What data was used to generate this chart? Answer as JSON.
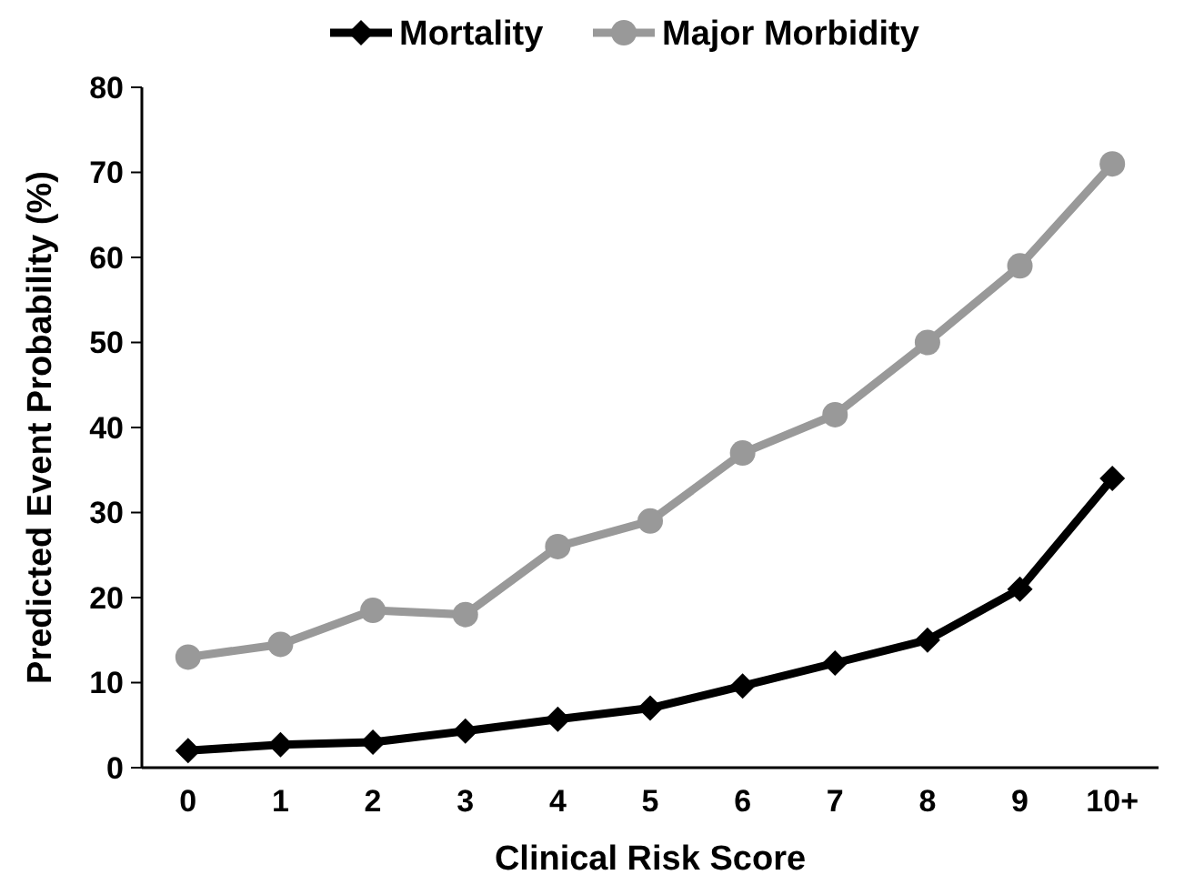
{
  "chart_data": {
    "type": "line",
    "xlabel": "Clinical Risk Score",
    "ylabel": "Predicted Event Probability  (%)",
    "categories": [
      "0",
      "1",
      "2",
      "3",
      "4",
      "5",
      "6",
      "7",
      "8",
      "9",
      "10+"
    ],
    "series": [
      {
        "name": "Mortality",
        "color": "#000000",
        "marker": "diamond",
        "values": [
          2,
          2.7,
          3,
          4.3,
          5.7,
          7,
          9.6,
          12.3,
          15,
          21,
          34
        ]
      },
      {
        "name": "Major Morbidity",
        "color": "#999999",
        "marker": "circle",
        "values": [
          13,
          14.5,
          18.5,
          18,
          26,
          29,
          37,
          41.5,
          50,
          59,
          71
        ]
      }
    ],
    "ylim": [
      0,
      80
    ],
    "yticks": [
      0,
      10,
      20,
      30,
      40,
      50,
      60,
      70,
      80
    ],
    "legend": "top",
    "line_style": "solid"
  }
}
